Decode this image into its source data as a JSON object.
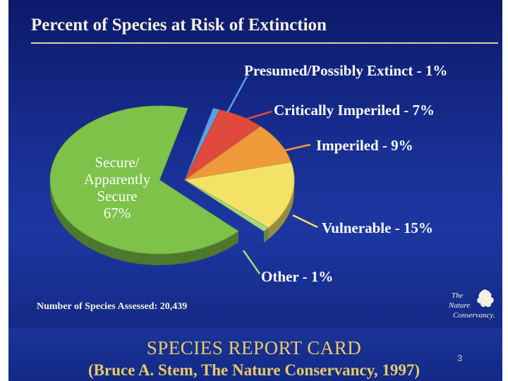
{
  "chart_data": {
    "type": "pie",
    "title": "Percent of Species at Risk of Extinction",
    "slices": [
      {
        "label": "Secure/ Apparently Secure",
        "lines": [
          "Secure/",
          "Apparently",
          "Secure",
          "67%"
        ],
        "value": 67,
        "color": "#7ec24a"
      },
      {
        "label": "Presumed/Possibly Extinct",
        "pct": "1%",
        "value": 1,
        "color": "#5aa0e6"
      },
      {
        "label": "Critically Imperiled",
        "pct": "7%",
        "value": 7,
        "color": "#e04a3c"
      },
      {
        "label": "Imperiled",
        "pct": "9%",
        "value": 9,
        "color": "#ef9a3a"
      },
      {
        "label": "Vulnerable",
        "pct": "15%",
        "value": 15,
        "color": "#f4e266"
      },
      {
        "label": "Other",
        "pct": "1%",
        "value": 1,
        "color": "#a8d87a"
      }
    ],
    "note": "Number of Species Assessed: 20,439"
  },
  "logo": {
    "line1": "The",
    "line2": "Nature",
    "line3": "Conservancy."
  },
  "footer": {
    "title": "SPECIES REPORT CARD",
    "citation": "(Bruce A. Stem, The Nature Conservancy, 1997)",
    "page_number": "3"
  }
}
